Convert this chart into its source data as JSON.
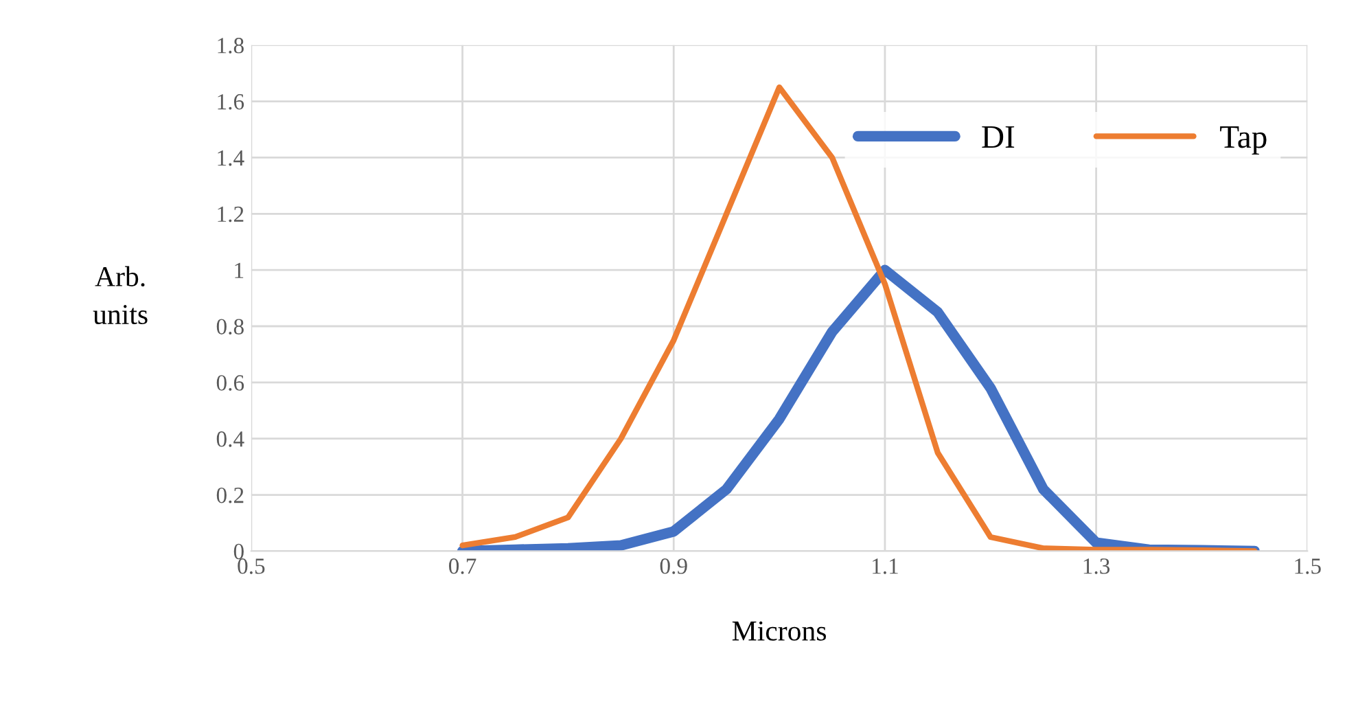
{
  "chart_data": {
    "type": "line",
    "xlabel": "Microns",
    "ylabel": "Arb.\nunits",
    "xlim": [
      0.5,
      1.5
    ],
    "xticks": [
      0.5,
      0.7,
      0.9,
      1.1,
      1.3,
      1.5
    ],
    "ylim": [
      0,
      1.8
    ],
    "yticks": [
      0,
      0.2,
      0.4,
      0.6,
      0.8,
      1,
      1.2,
      1.4,
      1.6,
      1.8
    ],
    "grid": true,
    "legend": "top right",
    "line_style": "solid",
    "marker": "none",
    "series": [
      {
        "name": "DI",
        "color": "#4472c4",
        "x": [
          0.7,
          0.75,
          0.8,
          0.85,
          0.9,
          0.95,
          1.0,
          1.05,
          1.1,
          1.15,
          1.2,
          1.25,
          1.3,
          1.35,
          1.4,
          1.45
        ],
        "values": [
          0,
          0.005,
          0.01,
          0.02,
          0.07,
          0.22,
          0.47,
          0.78,
          1.0,
          0.85,
          0.58,
          0.22,
          0.03,
          0.005,
          0.003,
          0
        ]
      },
      {
        "name": "Tap",
        "color": "#ed7d31",
        "x": [
          0.7,
          0.75,
          0.8,
          0.85,
          0.9,
          0.95,
          1.0,
          1.05,
          1.1,
          1.15,
          1.2,
          1.25,
          1.3,
          1.35,
          1.4,
          1.45
        ],
        "values": [
          0.02,
          0.05,
          0.12,
          0.4,
          0.75,
          1.2,
          1.65,
          1.4,
          0.95,
          0.35,
          0.05,
          0.01,
          0.005,
          0.005,
          0.003,
          0
        ]
      }
    ]
  }
}
